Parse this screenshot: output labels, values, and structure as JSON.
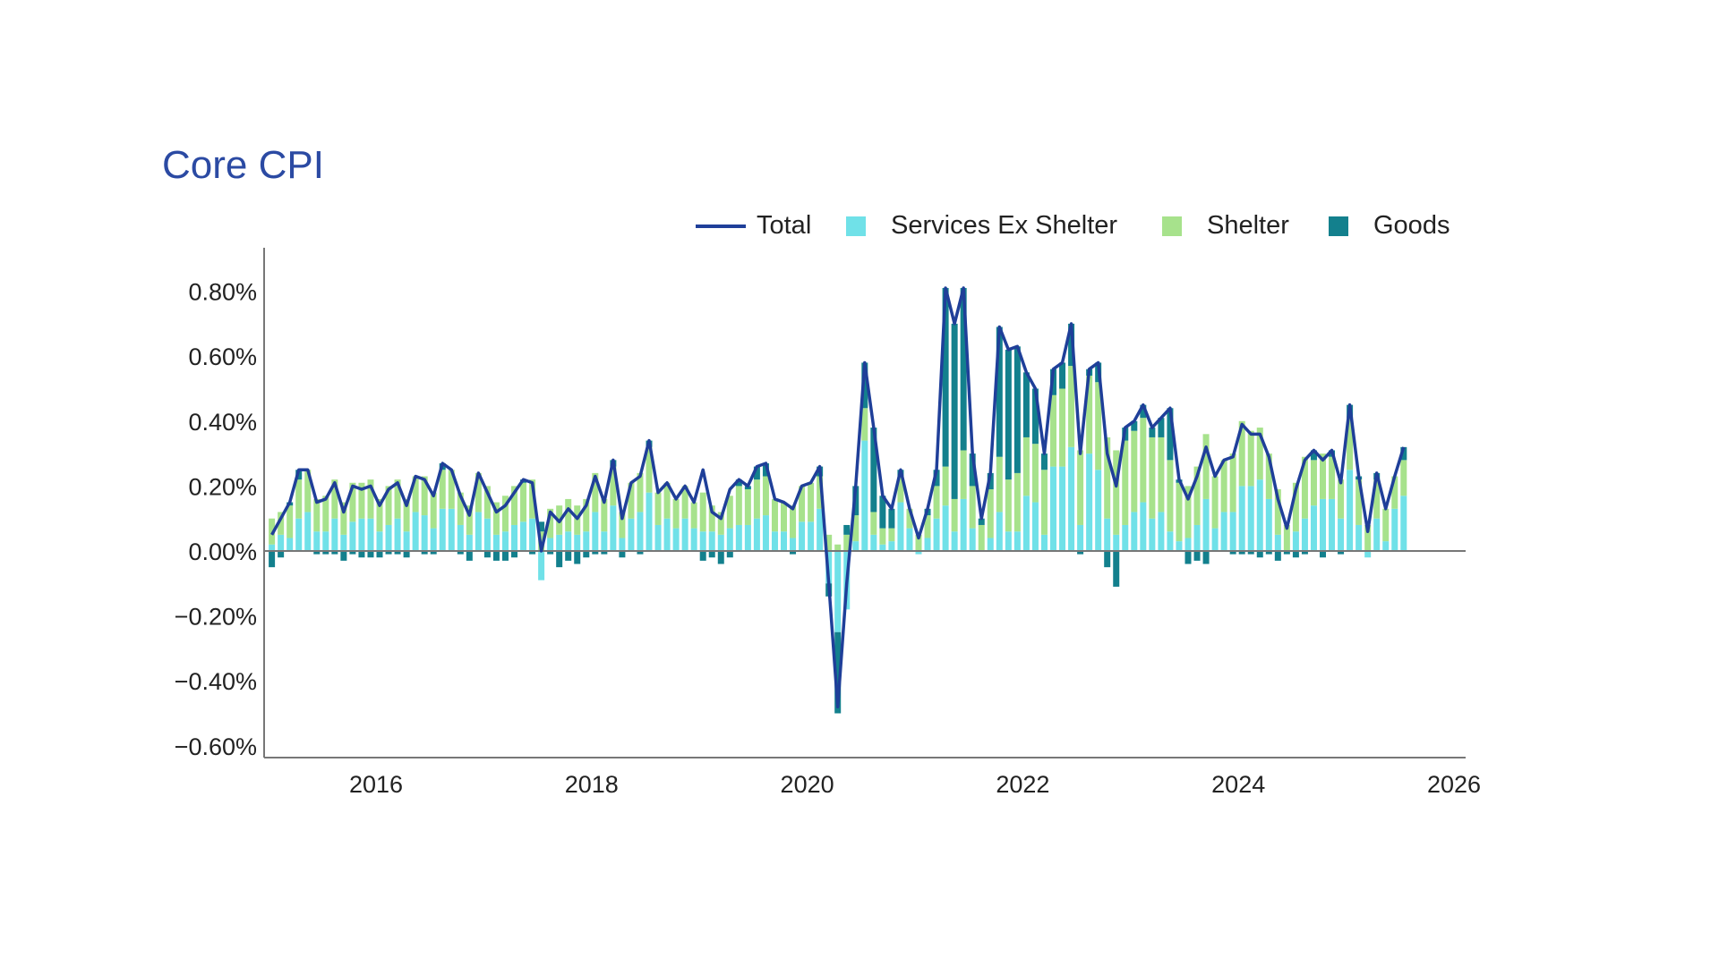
{
  "chart_data": {
    "type": "bar",
    "title": "Core CPI",
    "xlabel": "",
    "ylabel": "",
    "stacked": true,
    "start": "2015-01",
    "frequency": "monthly",
    "xticks": [
      "2016",
      "2018",
      "2020",
      "2022",
      "2024",
      "2026"
    ],
    "yticks": [
      "0.80%",
      "0.60%",
      "0.40%",
      "0.20%",
      "0.00%",
      "−0.20%",
      "−0.40%",
      "−0.60%"
    ],
    "ylim": [
      -0.6,
      0.9
    ],
    "grid": false,
    "legend_position": "top-right",
    "colors": {
      "Total": "#1f3f99",
      "Services Ex Shelter": "#70e1e8",
      "Shelter": "#a7e28c",
      "Goods": "#13808d"
    },
    "series": [
      {
        "name": "Total",
        "kind": "line",
        "values": [
          0.05,
          0.1,
          0.15,
          0.25,
          0.25,
          0.15,
          0.16,
          0.21,
          0.12,
          0.2,
          0.19,
          0.2,
          0.14,
          0.19,
          0.21,
          0.14,
          0.23,
          0.22,
          0.17,
          0.27,
          0.25,
          0.17,
          0.11,
          0.24,
          0.18,
          0.12,
          0.14,
          0.18,
          0.22,
          0.21,
          0.0,
          0.12,
          0.09,
          0.13,
          0.1,
          0.14,
          0.23,
          0.15,
          0.28,
          0.1,
          0.21,
          0.23,
          0.34,
          0.18,
          0.21,
          0.16,
          0.2,
          0.15,
          0.25,
          0.12,
          0.1,
          0.19,
          0.22,
          0.2,
          0.26,
          0.27,
          0.16,
          0.15,
          0.13,
          0.2,
          0.21,
          0.26,
          -0.1,
          -0.48,
          -0.1,
          0.2,
          0.58,
          0.38,
          0.17,
          0.13,
          0.25,
          0.13,
          0.04,
          0.13,
          0.25,
          0.81,
          0.7,
          0.81,
          0.3,
          0.1,
          0.24,
          0.69,
          0.62,
          0.63,
          0.55,
          0.5,
          0.3,
          0.56,
          0.58,
          0.7,
          0.3,
          0.56,
          0.58,
          0.3,
          0.2,
          0.38,
          0.4,
          0.45,
          0.38,
          0.41,
          0.44,
          0.22,
          0.16,
          0.23,
          0.32,
          0.23,
          0.28,
          0.29,
          0.39,
          0.36,
          0.36,
          0.29,
          0.16,
          0.07,
          0.19,
          0.28,
          0.31,
          0.28,
          0.31,
          0.21,
          0.45,
          0.23,
          0.06,
          0.24,
          0.13,
          0.23,
          0.32
        ]
      },
      {
        "name": "Services Ex Shelter",
        "kind": "bar",
        "values": [
          0.02,
          0.05,
          0.04,
          0.1,
          0.12,
          0.06,
          0.06,
          0.1,
          0.05,
          0.09,
          0.1,
          0.1,
          0.06,
          0.08,
          0.1,
          0.06,
          0.12,
          0.11,
          0.07,
          0.13,
          0.13,
          0.08,
          0.05,
          0.12,
          0.1,
          0.05,
          0.06,
          0.08,
          0.09,
          0.1,
          -0.09,
          0.04,
          0.05,
          0.06,
          0.05,
          0.06,
          0.12,
          0.06,
          0.14,
          0.04,
          0.1,
          0.12,
          0.18,
          0.08,
          0.1,
          0.07,
          0.1,
          0.07,
          0.06,
          0.06,
          0.05,
          0.07,
          0.08,
          0.08,
          0.1,
          0.11,
          0.06,
          0.06,
          0.04,
          0.09,
          0.09,
          0.13,
          -0.1,
          -0.25,
          -0.18,
          0.03,
          0.34,
          0.05,
          0.02,
          0.03,
          0.15,
          0.07,
          -0.01,
          0.04,
          0.1,
          0.14,
          0.06,
          0.16,
          0.07,
          0.0,
          0.04,
          0.12,
          0.06,
          0.06,
          0.17,
          0.15,
          0.05,
          0.26,
          0.26,
          0.32,
          0.08,
          0.3,
          0.25,
          0.1,
          0.05,
          0.08,
          0.12,
          0.15,
          0.1,
          0.12,
          0.06,
          0.03,
          0.04,
          0.08,
          0.16,
          0.07,
          0.12,
          0.12,
          0.2,
          0.2,
          0.22,
          0.16,
          0.05,
          0.0,
          0.06,
          0.1,
          0.14,
          0.16,
          0.16,
          0.1,
          0.25,
          0.08,
          -0.02,
          0.1,
          0.03,
          0.13,
          0.17
        ]
      },
      {
        "name": "Shelter",
        "kind": "bar",
        "values": [
          0.08,
          0.07,
          0.1,
          0.12,
          0.13,
          0.1,
          0.11,
          0.12,
          0.1,
          0.12,
          0.11,
          0.12,
          0.1,
          0.12,
          0.12,
          0.1,
          0.11,
          0.12,
          0.11,
          0.12,
          0.12,
          0.1,
          0.09,
          0.12,
          0.1,
          0.1,
          0.11,
          0.12,
          0.12,
          0.12,
          0.06,
          0.09,
          0.09,
          0.1,
          0.09,
          0.1,
          0.12,
          0.1,
          0.12,
          0.08,
          0.11,
          0.12,
          0.14,
          0.1,
          0.11,
          0.09,
          0.1,
          0.08,
          0.12,
          0.08,
          0.07,
          0.1,
          0.12,
          0.11,
          0.12,
          0.12,
          0.1,
          0.09,
          0.1,
          0.11,
          0.12,
          0.1,
          0.05,
          0.02,
          0.05,
          0.08,
          0.1,
          0.07,
          0.05,
          0.04,
          0.08,
          0.06,
          0.05,
          0.07,
          0.1,
          0.12,
          0.1,
          0.15,
          0.13,
          0.08,
          0.15,
          0.17,
          0.16,
          0.18,
          0.18,
          0.18,
          0.2,
          0.22,
          0.24,
          0.25,
          0.23,
          0.24,
          0.27,
          0.25,
          0.26,
          0.26,
          0.25,
          0.26,
          0.25,
          0.23,
          0.22,
          0.18,
          0.16,
          0.18,
          0.2,
          0.16,
          0.16,
          0.18,
          0.2,
          0.17,
          0.16,
          0.14,
          0.14,
          0.08,
          0.15,
          0.19,
          0.14,
          0.14,
          0.13,
          0.12,
          0.16,
          0.14,
          0.08,
          0.12,
          0.1,
          0.1,
          0.11
        ]
      },
      {
        "name": "Goods",
        "kind": "bar",
        "values": [
          -0.05,
          -0.02,
          0.01,
          0.03,
          0.0,
          -0.01,
          -0.01,
          -0.01,
          -0.03,
          -0.01,
          -0.02,
          -0.02,
          -0.02,
          -0.01,
          -0.01,
          -0.02,
          0.0,
          -0.01,
          -0.01,
          0.02,
          0.0,
          -0.01,
          -0.03,
          0.0,
          -0.02,
          -0.03,
          -0.03,
          -0.02,
          0.01,
          -0.01,
          0.03,
          -0.01,
          -0.05,
          -0.03,
          -0.04,
          -0.02,
          -0.01,
          -0.01,
          0.02,
          -0.02,
          0.0,
          -0.01,
          0.02,
          0.0,
          0.0,
          0.0,
          0.0,
          0.0,
          -0.03,
          -0.02,
          -0.04,
          -0.02,
          0.02,
          0.01,
          0.04,
          0.04,
          0.0,
          0.0,
          -0.01,
          0.0,
          0.0,
          0.03,
          -0.04,
          -0.25,
          0.03,
          0.09,
          0.14,
          0.26,
          0.1,
          0.06,
          0.02,
          0.0,
          0.0,
          0.02,
          0.05,
          0.55,
          0.54,
          0.5,
          0.1,
          0.02,
          0.05,
          0.4,
          0.4,
          0.39,
          0.2,
          0.17,
          0.05,
          0.08,
          0.08,
          0.13,
          -0.01,
          0.02,
          0.06,
          -0.05,
          -0.11,
          0.04,
          0.03,
          0.04,
          0.03,
          0.06,
          0.16,
          0.01,
          -0.04,
          -0.03,
          -0.04,
          0.0,
          0.0,
          -0.01,
          -0.01,
          -0.01,
          -0.02,
          -0.01,
          -0.03,
          -0.01,
          -0.02,
          -0.01,
          0.03,
          -0.02,
          0.02,
          -0.01,
          0.04,
          0.01,
          0.0,
          0.02,
          0.0,
          0.0,
          0.04
        ]
      }
    ]
  }
}
